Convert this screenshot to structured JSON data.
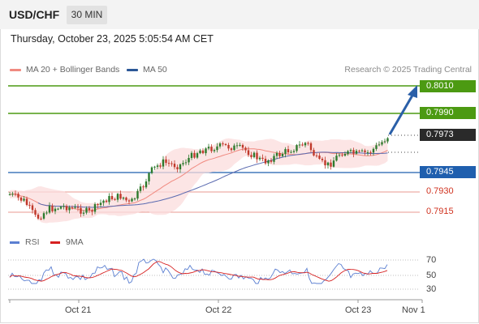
{
  "header": {
    "symbol": "USD/CHF",
    "timeframe": "30 MIN",
    "datetime": "Thursday, October 23, 2025 5:05:54 AM CET"
  },
  "legend": {
    "ma20_label": "MA 20 + Bollinger Bands",
    "ma20_color": "#f08a80",
    "ma50_label": "MA 50",
    "ma50_color": "#2b5797",
    "credit": "Research © 2025 Trading Central"
  },
  "levels": {
    "r2": "0.8010",
    "r1": "0.7990",
    "last": "0.7973",
    "pivot": "0.7945",
    "s1": "0.7930",
    "s2": "0.7915"
  },
  "colors": {
    "resistance": "#4c9a12",
    "pivot": "#1f5fae",
    "support": "#d0321f",
    "up_candle": "#2d7a2d",
    "down_candle": "#c0392b",
    "band_fill": "#fbdcdc",
    "rsi": "#5b7fd1",
    "rsi_ma": "#d62020"
  },
  "indicator": {
    "rsi_label": "RSI",
    "ma_label": "9MA",
    "ticks": [
      "70",
      "50",
      "30"
    ]
  },
  "xaxis": {
    "labels": [
      "Oct 21",
      "Oct 22",
      "Oct 23",
      "Nov 1"
    ]
  }
}
